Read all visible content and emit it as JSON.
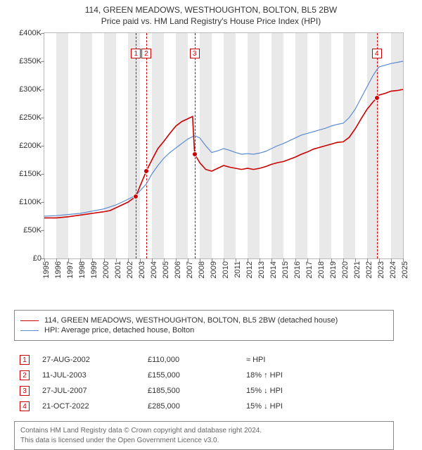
{
  "title_line1": "114, GREEN MEADOWS, WESTHOUGHTON, BOLTON, BL5 2BW",
  "title_line2": "Price paid vs. HM Land Registry's House Price Index (HPI)",
  "chart": {
    "x_min_year": 1995,
    "x_max_year": 2025,
    "y_min": 0,
    "y_max": 400000,
    "y_tick_step": 50000,
    "y_tick_labels": [
      "£0",
      "£50K",
      "£100K",
      "£150K",
      "£200K",
      "£250K",
      "£300K",
      "£350K",
      "£400K"
    ],
    "x_tick_years": [
      1995,
      1996,
      1997,
      1998,
      1999,
      2000,
      2001,
      2002,
      2003,
      2004,
      2005,
      2006,
      2007,
      2008,
      2009,
      2010,
      2011,
      2012,
      2013,
      2014,
      2015,
      2016,
      2017,
      2018,
      2019,
      2020,
      2021,
      2022,
      2023,
      2024,
      2025
    ],
    "band_color": "#e9e9e9",
    "grid_border_color": "#bbbbbb",
    "axis_font_size": 11,
    "series": [
      {
        "name": "subject",
        "label": "114, GREEN MEADOWS, WESTHOUGHTON, BOLTON, BL5 2BW (detached house)",
        "color": "#cc0000",
        "line_width": 1.6,
        "points": [
          [
            1995.0,
            72000
          ],
          [
            1996.0,
            72000
          ],
          [
            1997.0,
            74000
          ],
          [
            1998.0,
            77000
          ],
          [
            1999.0,
            80000
          ],
          [
            2000.0,
            83000
          ],
          [
            2000.5,
            85000
          ],
          [
            2001.0,
            90000
          ],
          [
            2001.5,
            95000
          ],
          [
            2002.0,
            100000
          ],
          [
            2002.66,
            110000
          ],
          [
            2003.0,
            128000
          ],
          [
            2003.53,
            155000
          ],
          [
            2004.0,
            175000
          ],
          [
            2004.5,
            195000
          ],
          [
            2005.0,
            208000
          ],
          [
            2005.5,
            222000
          ],
          [
            2006.0,
            235000
          ],
          [
            2006.5,
            243000
          ],
          [
            2007.0,
            248000
          ],
          [
            2007.4,
            252000
          ],
          [
            2007.57,
            185500
          ],
          [
            2008.0,
            170000
          ],
          [
            2008.5,
            158000
          ],
          [
            2009.0,
            155000
          ],
          [
            2009.5,
            160000
          ],
          [
            2010.0,
            165000
          ],
          [
            2010.5,
            162000
          ],
          [
            2011.0,
            160000
          ],
          [
            2011.5,
            158000
          ],
          [
            2012.0,
            160000
          ],
          [
            2012.5,
            158000
          ],
          [
            2013.0,
            160000
          ],
          [
            2013.5,
            163000
          ],
          [
            2014.0,
            167000
          ],
          [
            2014.5,
            170000
          ],
          [
            2015.0,
            172000
          ],
          [
            2015.5,
            176000
          ],
          [
            2016.0,
            180000
          ],
          [
            2016.5,
            185000
          ],
          [
            2017.0,
            189000
          ],
          [
            2017.5,
            194000
          ],
          [
            2018.0,
            197000
          ],
          [
            2018.5,
            200000
          ],
          [
            2019.0,
            203000
          ],
          [
            2019.5,
            206000
          ],
          [
            2020.0,
            207000
          ],
          [
            2020.5,
            215000
          ],
          [
            2021.0,
            230000
          ],
          [
            2021.5,
            248000
          ],
          [
            2022.0,
            265000
          ],
          [
            2022.5,
            278000
          ],
          [
            2022.81,
            285000
          ],
          [
            2023.0,
            290000
          ],
          [
            2023.5,
            293000
          ],
          [
            2024.0,
            297000
          ],
          [
            2024.5,
            298000
          ],
          [
            2025.0,
            300000
          ]
        ]
      },
      {
        "name": "hpi",
        "label": "HPI: Average price, detached house, Bolton",
        "color": "#5b8bd0",
        "line_width": 1.2,
        "points": [
          [
            1995.0,
            75000
          ],
          [
            1996.0,
            76000
          ],
          [
            1997.0,
            78000
          ],
          [
            1998.0,
            80000
          ],
          [
            1999.0,
            84000
          ],
          [
            2000.0,
            88000
          ],
          [
            2001.0,
            95000
          ],
          [
            2002.0,
            105000
          ],
          [
            2002.66,
            112000
          ],
          [
            2003.0,
            120000
          ],
          [
            2003.53,
            132000
          ],
          [
            2004.0,
            150000
          ],
          [
            2004.5,
            165000
          ],
          [
            2005.0,
            178000
          ],
          [
            2005.5,
            188000
          ],
          [
            2006.0,
            196000
          ],
          [
            2006.5,
            204000
          ],
          [
            2007.0,
            212000
          ],
          [
            2007.57,
            218000
          ],
          [
            2008.0,
            214000
          ],
          [
            2008.5,
            200000
          ],
          [
            2009.0,
            188000
          ],
          [
            2009.5,
            191000
          ],
          [
            2010.0,
            195000
          ],
          [
            2010.5,
            192000
          ],
          [
            2011.0,
            188000
          ],
          [
            2011.5,
            185000
          ],
          [
            2012.0,
            186000
          ],
          [
            2012.5,
            185000
          ],
          [
            2013.0,
            187000
          ],
          [
            2013.5,
            190000
          ],
          [
            2014.0,
            195000
          ],
          [
            2014.5,
            200000
          ],
          [
            2015.0,
            204000
          ],
          [
            2015.5,
            209000
          ],
          [
            2016.0,
            214000
          ],
          [
            2016.5,
            219000
          ],
          [
            2017.0,
            222000
          ],
          [
            2017.5,
            225000
          ],
          [
            2018.0,
            228000
          ],
          [
            2018.5,
            231000
          ],
          [
            2019.0,
            235000
          ],
          [
            2019.5,
            238000
          ],
          [
            2020.0,
            240000
          ],
          [
            2020.5,
            250000
          ],
          [
            2021.0,
            265000
          ],
          [
            2021.5,
            285000
          ],
          [
            2022.0,
            305000
          ],
          [
            2022.5,
            325000
          ],
          [
            2022.81,
            335000
          ],
          [
            2023.0,
            340000
          ],
          [
            2023.5,
            343000
          ],
          [
            2024.0,
            346000
          ],
          [
            2024.5,
            348000
          ],
          [
            2025.0,
            350000
          ]
        ]
      }
    ],
    "markers": [
      {
        "n": "1",
        "year": 2002.66,
        "value": 110000
      },
      {
        "n": "2",
        "year": 2003.53,
        "value": 155000
      },
      {
        "n": "3",
        "year": 2007.57,
        "value": 185500
      },
      {
        "n": "4",
        "year": 2022.81,
        "value": 285000
      }
    ],
    "marker_color": "#cc0000",
    "marker_box_top_offset": 22
  },
  "legend_border_color": "#888888",
  "sales": [
    {
      "n": "1",
      "date": "27-AUG-2002",
      "price": "£110,000",
      "delta": "≈ HPI"
    },
    {
      "n": "2",
      "date": "11-JUL-2003",
      "price": "£155,000",
      "delta": "18% ↑ HPI"
    },
    {
      "n": "3",
      "date": "27-JUL-2007",
      "price": "£185,500",
      "delta": "15% ↓ HPI"
    },
    {
      "n": "4",
      "date": "21-OCT-2022",
      "price": "£285,000",
      "delta": "15% ↓ HPI"
    }
  ],
  "attribution_line1": "Contains HM Land Registry data © Crown copyright and database right 2024.",
  "attribution_line2": "This data is licensed under the Open Government Licence v3.0."
}
